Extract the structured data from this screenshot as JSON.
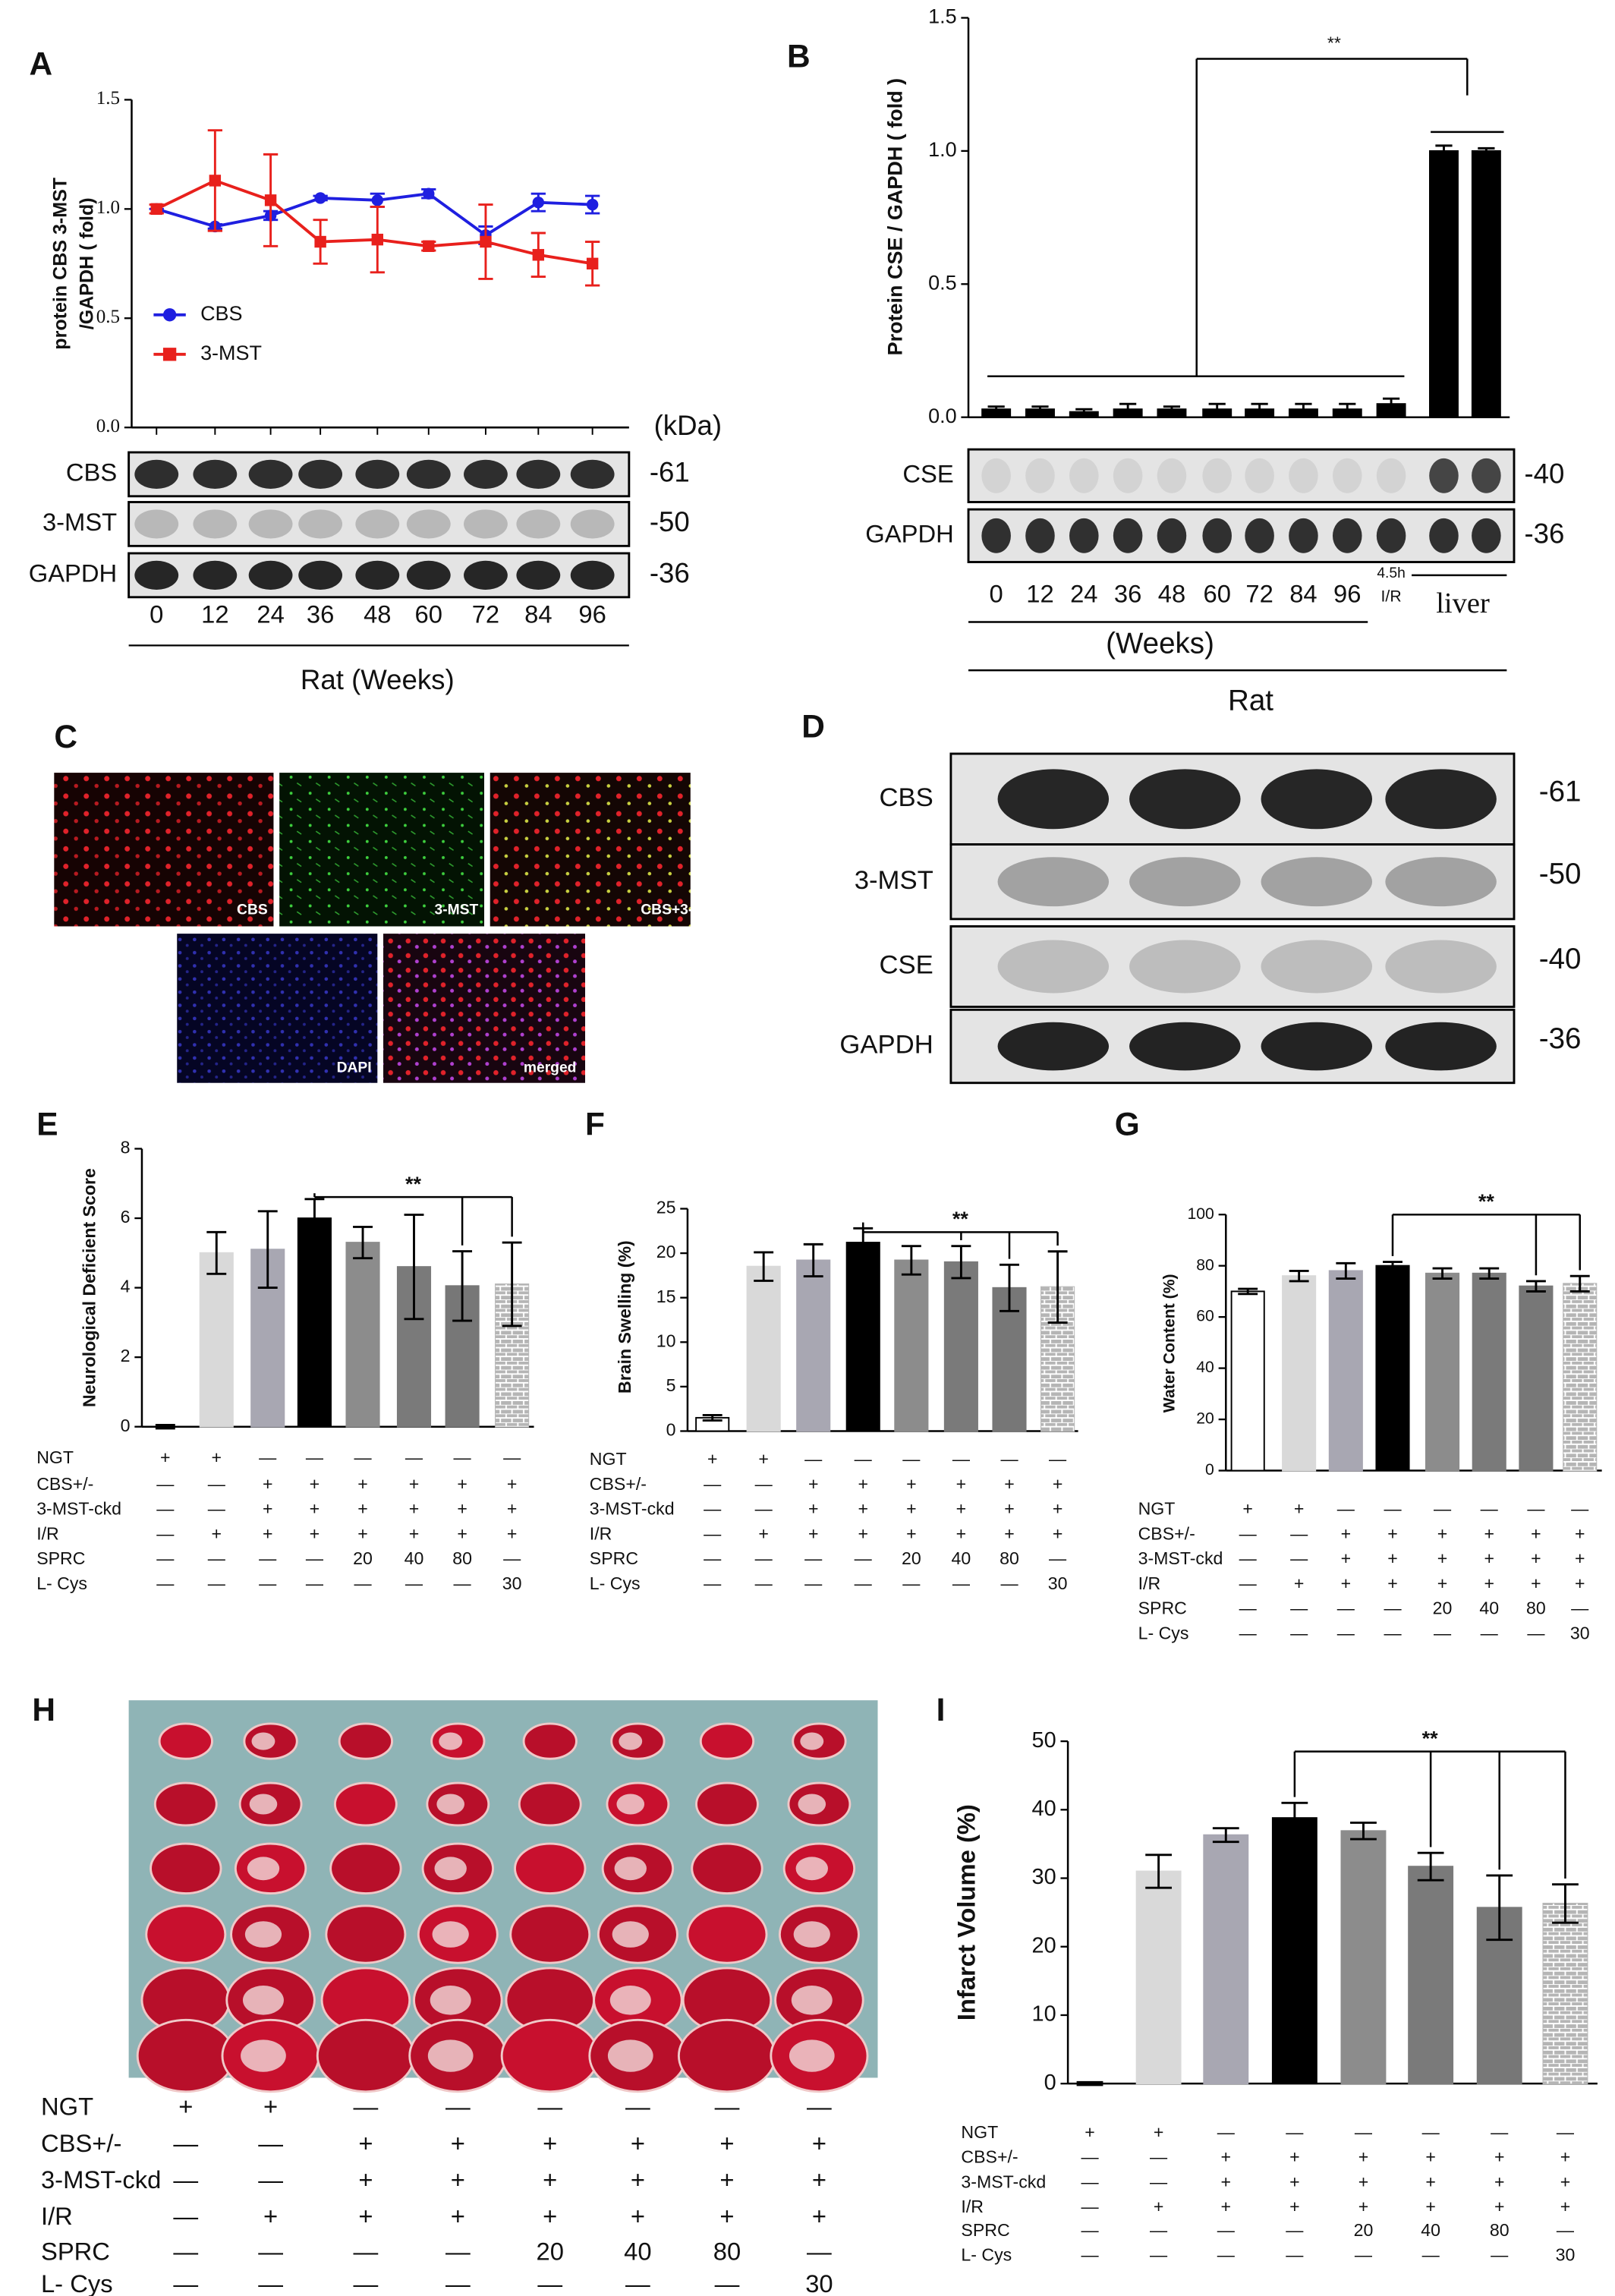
{
  "chart_data": [
    {
      "panel": "A",
      "type": "line",
      "ylabel": [
        "protein CBS  3-MST",
        "/GAPDH ( fold)"
      ],
      "categories": [
        "0",
        "12",
        "24",
        "36",
        "48",
        "60",
        "72",
        "84",
        "96"
      ],
      "xlabel": "Rat (Weeks)",
      "ylim": [
        0,
        1.5
      ],
      "yticks": [
        {
          "value": 0,
          "label": "0.0"
        },
        0.5,
        {
          "value": 1,
          "label": "1.0"
        },
        1.5
      ],
      "series": [
        {
          "name": "CBS",
          "color": "#1f1fe0",
          "marker": "circle",
          "values": [
            1.0,
            0.92,
            0.97,
            1.05,
            1.04,
            1.07,
            0.88,
            1.03,
            1.02
          ],
          "errors": [
            0.0,
            0.01,
            0.02,
            0.01,
            0.03,
            0.02,
            0.04,
            0.04,
            0.04
          ]
        },
        {
          "name": "3-MST",
          "color": "#e8201c",
          "marker": "square",
          "values": [
            1.0,
            1.13,
            1.04,
            0.85,
            0.86,
            0.83,
            0.85,
            0.79,
            0.75
          ],
          "errors": [
            0.02,
            0.23,
            0.21,
            0.1,
            0.15,
            0.02,
            0.17,
            0.1,
            0.1
          ]
        }
      ],
      "blot": {
        "unit": "(kDa)",
        "rows": [
          {
            "label": "CBS",
            "kda": "-61"
          },
          {
            "label": "3-MST",
            "kda": "-50"
          },
          {
            "label": "GAPDH",
            "kda": "-36"
          }
        ]
      }
    },
    {
      "panel": "B",
      "type": "bar",
      "ylabel": "Protein CSE / GAPDH ( fold )",
      "categories": [
        "0",
        "12",
        "24",
        "36",
        "48",
        "60",
        "72",
        "84",
        "96",
        "4.5h",
        null,
        null
      ],
      "category_note": "I/R",
      "group_labels": {
        "weeks": "(Weeks)",
        "species": "Rat",
        "liver": "liver"
      },
      "ylim": [
        0,
        1.5
      ],
      "yticks": [
        {
          "value": 0,
          "label": "0.0"
        },
        0.5,
        {
          "value": 1,
          "label": "1.0"
        },
        1.5
      ],
      "values": [
        0.03,
        0.03,
        0.02,
        0.03,
        0.03,
        0.03,
        0.03,
        0.03,
        0.03,
        0.05,
        1.0,
        1.0
      ],
      "errors": [
        0.01,
        0.01,
        0.01,
        0.02,
        0.01,
        0.02,
        0.02,
        0.02,
        0.02,
        0.02,
        0.02,
        0.01
      ],
      "color": "#000000",
      "annotation": "**",
      "blot": {
        "rows": [
          {
            "label": "CSE",
            "kda": "-40"
          },
          {
            "label": "GAPDH",
            "kda": "-36"
          }
        ]
      }
    },
    {
      "panel": "E",
      "type": "bar",
      "ylabel": "Neurological Deficient Score",
      "ylim": [
        0,
        8
      ],
      "yticks": [
        0,
        2,
        4,
        6,
        8
      ],
      "values": [
        0,
        5.0,
        5.1,
        6.0,
        5.3,
        4.6,
        4.05,
        4.1
      ],
      "errors": [
        0.05,
        0.6,
        1.1,
        0.55,
        0.45,
        1.5,
        1.0,
        1.2
      ],
      "colors": [
        "#ffffff",
        "#d9d9d9",
        "#a8a7b2",
        "#000000",
        "#8c8c8c",
        "#7a7a7a",
        "#777777",
        "#b5b5b5"
      ],
      "annotation": "**",
      "conditions": [
        {
          "label": "NGT",
          "cells": [
            "+",
            "+",
            "—",
            "—",
            "—",
            "—",
            "—",
            "—"
          ]
        },
        {
          "label": "CBS+/-",
          "cells": [
            "—",
            "—",
            "+",
            "+",
            "+",
            "+",
            "+",
            "+"
          ]
        },
        {
          "label": "3-MST-ckd",
          "cells": [
            "—",
            "—",
            "+",
            "+",
            "+",
            "+",
            "+",
            "+"
          ]
        },
        {
          "label": "I/R",
          "cells": [
            "—",
            "+",
            "+",
            "+",
            "+",
            "+",
            "+",
            "+"
          ]
        },
        {
          "label": "SPRC",
          "cells": [
            "—",
            "—",
            "—",
            "—",
            "20",
            "40",
            "80",
            "—"
          ]
        },
        {
          "label": "L- Cys",
          "cells": [
            "—",
            "—",
            "—",
            "—",
            "—",
            "—",
            "—",
            "30"
          ]
        }
      ]
    },
    {
      "panel": "F",
      "type": "bar",
      "ylabel": "Brain Swelling  (%)",
      "ylim": [
        0,
        25
      ],
      "yticks": [
        0,
        5,
        10,
        15,
        20,
        25
      ],
      "values": [
        1.5,
        18.5,
        19.2,
        21.2,
        19.2,
        19.0,
        16.1,
        16.2
      ],
      "errors": [
        0.3,
        1.6,
        1.8,
        1.6,
        1.6,
        1.8,
        2.6,
        4.0
      ],
      "colors": [
        "#ffffff",
        "#d9d9d9",
        "#a8a7b2",
        "#000000",
        "#8c8c8c",
        "#7a7a7a",
        "#777777",
        "#b5b5b5"
      ],
      "annotation": "**",
      "conditions": [
        {
          "label": "NGT",
          "cells": [
            "+",
            "+",
            "—",
            "—",
            "—",
            "—",
            "—",
            "—"
          ]
        },
        {
          "label": "CBS+/-",
          "cells": [
            "—",
            "—",
            "+",
            "+",
            "+",
            "+",
            "+",
            "+"
          ]
        },
        {
          "label": "3-MST-ckd",
          "cells": [
            "—",
            "—",
            "+",
            "+",
            "+",
            "+",
            "+",
            "+"
          ]
        },
        {
          "label": "I/R",
          "cells": [
            "—",
            "+",
            "+",
            "+",
            "+",
            "+",
            "+",
            "+"
          ]
        },
        {
          "label": "SPRC",
          "cells": [
            "—",
            "—",
            "—",
            "—",
            "20",
            "40",
            "80",
            "—"
          ]
        },
        {
          "label": "L- Cys",
          "cells": [
            "—",
            "—",
            "—",
            "—",
            "—",
            "—",
            "—",
            "30"
          ]
        }
      ]
    },
    {
      "panel": "G",
      "type": "bar",
      "ylabel": "Water Content  (%)",
      "ylim": [
        0,
        100
      ],
      "yticks": [
        0,
        20,
        40,
        60,
        80,
        100
      ],
      "values": [
        70,
        76,
        78,
        80,
        77,
        77,
        72,
        73
      ],
      "errors": [
        1,
        2,
        3,
        1.5,
        2,
        2,
        2,
        3
      ],
      "colors": [
        "#ffffff",
        "#d9d9d9",
        "#a8a7b2",
        "#000000",
        "#8c8c8c",
        "#7a7a7a",
        "#777777",
        "#b5b5b5"
      ],
      "annotation": "**",
      "conditions": [
        {
          "label": "NGT",
          "cells": [
            "+",
            "+",
            "—",
            "—",
            "—",
            "—",
            "—",
            "—"
          ]
        },
        {
          "label": "CBS+/-",
          "cells": [
            "—",
            "—",
            "+",
            "+",
            "+",
            "+",
            "+",
            "+"
          ]
        },
        {
          "label": "3-MST-ckd",
          "cells": [
            "—",
            "—",
            "+",
            "+",
            "+",
            "+",
            "+",
            "+"
          ]
        },
        {
          "label": "I/R",
          "cells": [
            "—",
            "+",
            "+",
            "+",
            "+",
            "+",
            "+",
            "+"
          ]
        },
        {
          "label": "SPRC",
          "cells": [
            "—",
            "—",
            "—",
            "—",
            "20",
            "40",
            "80",
            "—"
          ]
        },
        {
          "label": "L- Cys",
          "cells": [
            "—",
            "—",
            "—",
            "—",
            "—",
            "—",
            "—",
            "30"
          ]
        }
      ]
    },
    {
      "panel": "I",
      "type": "bar",
      "ylabel": "Infarct Volume  (%)",
      "ylim": [
        0,
        50
      ],
      "yticks": [
        0,
        10,
        20,
        30,
        40,
        50
      ],
      "values": [
        0,
        31.0,
        36.3,
        38.8,
        36.9,
        31.7,
        25.7,
        26.3
      ],
      "errors": [
        0.2,
        2.4,
        1.0,
        2.2,
        1.2,
        2.0,
        4.7,
        2.8
      ],
      "colors": [
        "#ffffff",
        "#d9d9d9",
        "#a8a7b2",
        "#000000",
        "#8c8c8c",
        "#7a7a7a",
        "#777777",
        "#b5b5b5"
      ],
      "annotation": "**",
      "conditions": [
        {
          "label": "NGT",
          "cells": [
            "+",
            "+",
            "—",
            "—",
            "—",
            "—",
            "—",
            "—"
          ]
        },
        {
          "label": "CBS+/-",
          "cells": [
            "—",
            "—",
            "+",
            "+",
            "+",
            "+",
            "+",
            "+"
          ]
        },
        {
          "label": "3-MST-ckd",
          "cells": [
            "—",
            "—",
            "+",
            "+",
            "+",
            "+",
            "+",
            "+"
          ]
        },
        {
          "label": "I/R",
          "cells": [
            "—",
            "+",
            "+",
            "+",
            "+",
            "+",
            "+",
            "+"
          ]
        },
        {
          "label": "SPRC",
          "cells": [
            "—",
            "—",
            "—",
            "—",
            "20",
            "40",
            "80",
            "—"
          ]
        },
        {
          "label": "L- Cys",
          "cells": [
            "—",
            "—",
            "—",
            "—",
            "—",
            "—",
            "—",
            "30"
          ]
        }
      ]
    }
  ],
  "panels": {
    "C": {
      "letter": "C",
      "images": [
        "CBS",
        "3-MST",
        "CBS+3-",
        "DAPI",
        "merged"
      ]
    },
    "D": {
      "letter": "D",
      "rows": [
        {
          "label": "CBS",
          "kda": "-61"
        },
        {
          "label": "3-MST",
          "kda": "-50"
        },
        {
          "label": "CSE",
          "kda": "-40"
        },
        {
          "label": "GAPDH",
          "kda": "-36"
        }
      ]
    },
    "H": {
      "letter": "H",
      "conditions": [
        {
          "label": "NGT",
          "cells": [
            "+",
            "+",
            "—",
            "—",
            "—",
            "—",
            "—",
            "—"
          ]
        },
        {
          "label": "CBS+/-",
          "cells": [
            "—",
            "—",
            "+",
            "+",
            "+",
            "+",
            "+",
            "+"
          ]
        },
        {
          "label": "3-MST-ckd",
          "cells": [
            "—",
            "—",
            "+",
            "+",
            "+",
            "+",
            "+",
            "+"
          ]
        },
        {
          "label": "I/R",
          "cells": [
            "—",
            "+",
            "+",
            "+",
            "+",
            "+",
            "+",
            "+"
          ]
        },
        {
          "label": "SPRC",
          "cells": [
            "—",
            "—",
            "—",
            "—",
            "20",
            "40",
            "80",
            "—"
          ]
        },
        {
          "label": "L- Cys",
          "cells": [
            "—",
            "—",
            "—",
            "—",
            "—",
            "—",
            "—",
            "30"
          ]
        }
      ]
    }
  }
}
